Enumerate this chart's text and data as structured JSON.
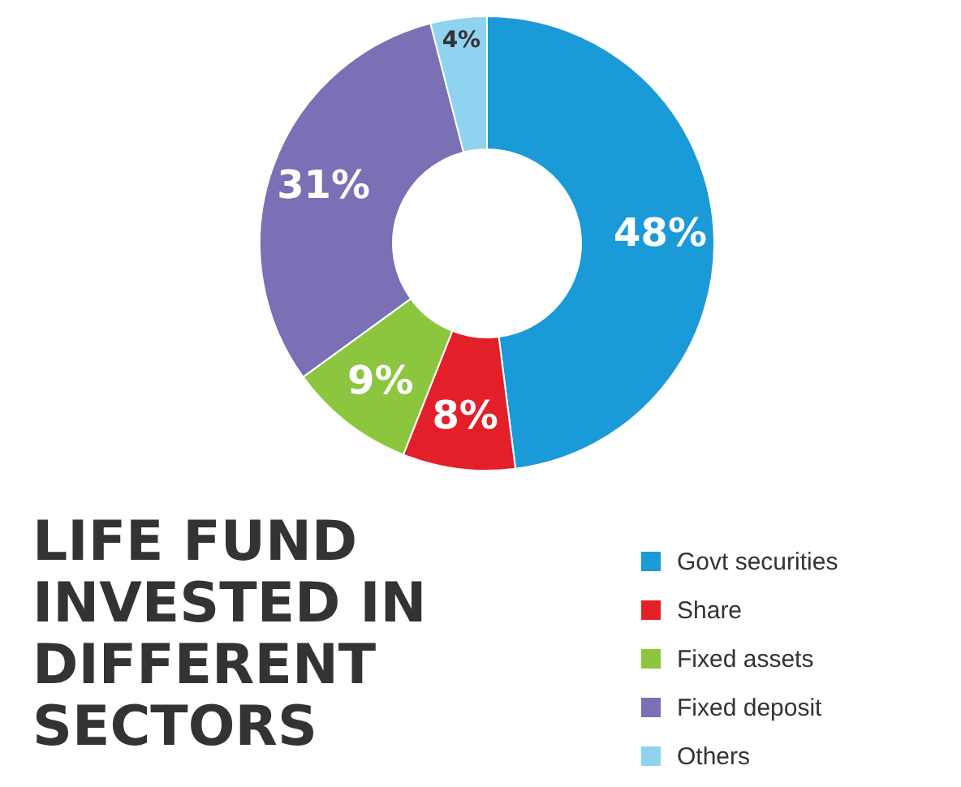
{
  "chart_data": {
    "type": "donut",
    "title": "LIFE FUND INVESTED IN DIFFERENT SECTORS",
    "categories": [
      "Govt securities",
      "Share",
      "Fixed assets",
      "Fixed deposit",
      "Others"
    ],
    "values": [
      48,
      8,
      9,
      31,
      4
    ],
    "colors": [
      "#1a9ad6",
      "#e3202a",
      "#8cc63f",
      "#7b6fb5",
      "#8fd3f0"
    ],
    "value_labels": [
      "48%",
      "8%",
      "9%",
      "31%",
      "4%"
    ],
    "legend": "bottom right"
  }
}
